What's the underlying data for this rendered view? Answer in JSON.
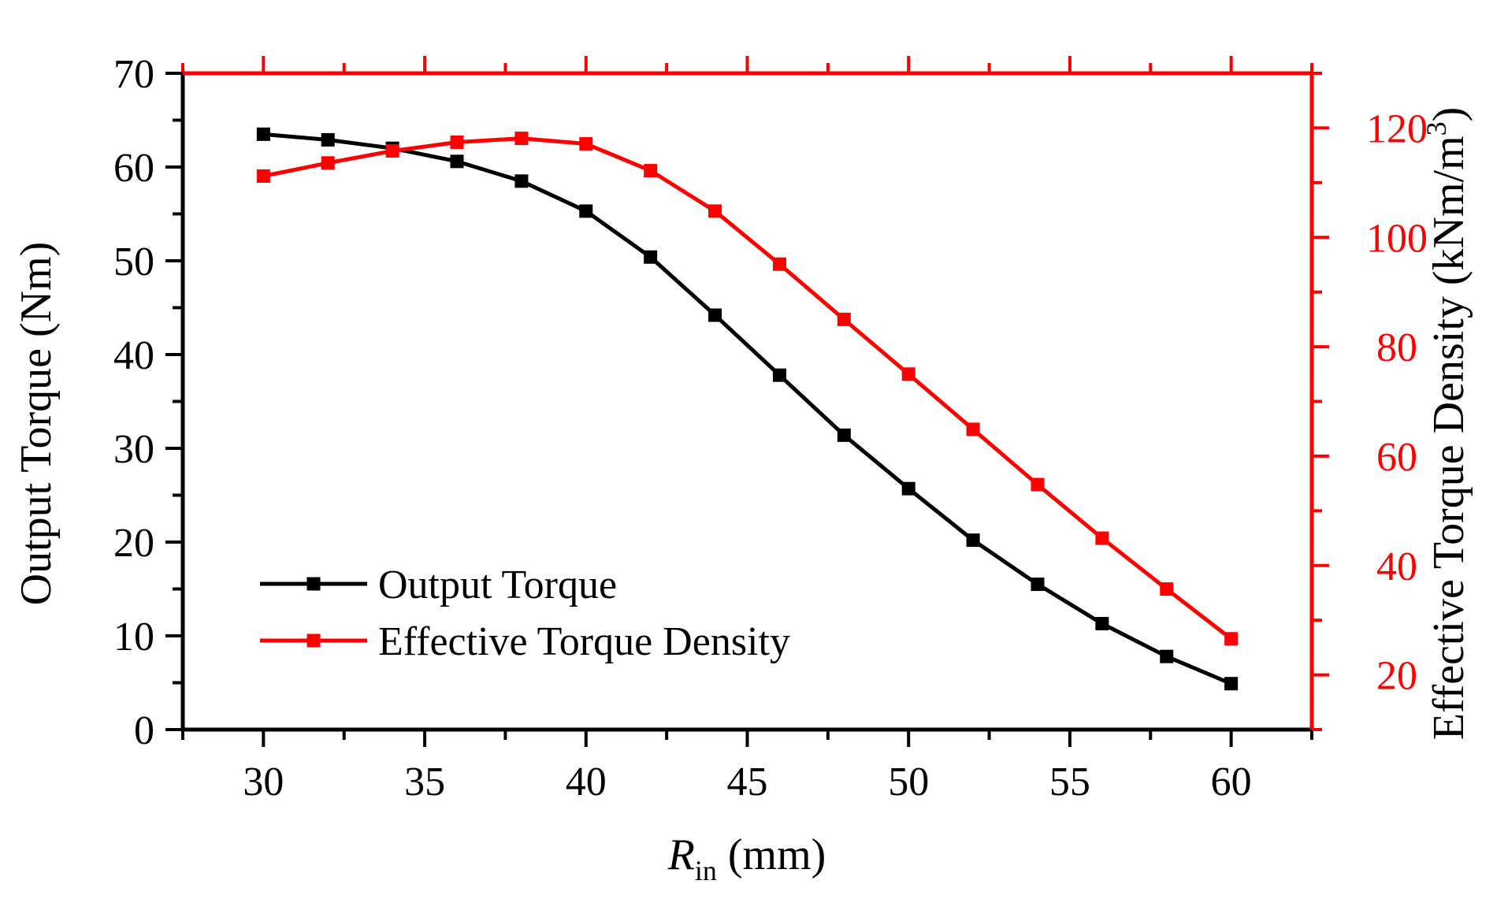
{
  "chart_data": {
    "type": "line",
    "x": [
      30,
      32,
      34,
      36,
      38,
      40,
      42,
      44,
      46,
      48,
      50,
      52,
      54,
      56,
      58,
      60
    ],
    "xlabel_main": "R",
    "xlabel_sub": "in",
    "xlabel_unit": "(mm)",
    "xlim": [
      27.5,
      62.5
    ],
    "xticks": [
      30,
      35,
      40,
      45,
      50,
      55,
      60
    ],
    "ylabel_left": "Output Torque (Nm)",
    "ylim_left": [
      0,
      70
    ],
    "yticks_left": [
      0,
      10,
      20,
      30,
      40,
      50,
      60,
      70
    ],
    "ylabel_right_main": "Effective Torque Density (kNm/m",
    "ylabel_right_sup": "3",
    "ylabel_right_close": ")",
    "ylim_right": [
      10,
      130
    ],
    "yticks_right": [
      20,
      40,
      60,
      80,
      100,
      120
    ],
    "legend_position": "bottom-left",
    "grid": false,
    "series": [
      {
        "name": "Output Torque",
        "axis": "left",
        "color": "#000000",
        "marker": "square",
        "values": [
          63.5,
          62.9,
          62.0,
          60.6,
          58.5,
          55.3,
          50.4,
          44.2,
          37.8,
          31.4,
          25.7,
          20.2,
          15.5,
          11.3,
          7.8,
          4.9
        ]
      },
      {
        "name": "Effective Torque Density",
        "axis": "right",
        "color": "#ff0000",
        "marker": "square",
        "values": [
          111.2,
          113.6,
          115.8,
          117.4,
          118.1,
          117.1,
          112.2,
          104.8,
          95.1,
          85.0,
          75.0,
          64.9,
          54.8,
          45.0,
          35.7,
          26.6
        ]
      }
    ]
  }
}
